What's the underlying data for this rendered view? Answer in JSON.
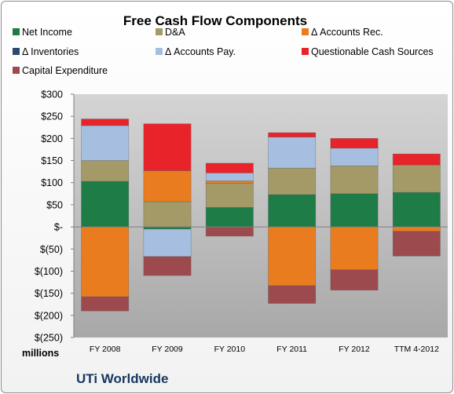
{
  "chart_data": {
    "type": "bar",
    "stacked": true,
    "title": "Free Cash Flow Components",
    "units_label": "millions",
    "company": "UTi Worldwide",
    "categories": [
      "FY 2008",
      "FY 2009",
      "FY 2010",
      "FY 2011",
      "FY 2012",
      "TTM 4-2012"
    ],
    "ylim": [
      -250,
      300
    ],
    "y_ticks": [
      300,
      250,
      200,
      150,
      100,
      50,
      0,
      -50,
      -100,
      -150,
      -200,
      -250
    ],
    "y_tick_labels": [
      "$300",
      "$250",
      "$200",
      "$150",
      "$100",
      "$50",
      "$-",
      "$(50)",
      "$(100)",
      "$(150)",
      "$(200)",
      "$(250)"
    ],
    "legend_position": "top",
    "grid": false,
    "series": [
      {
        "name": "Net Income",
        "color": "#1e7c46",
        "values": [
          103,
          -5,
          44,
          73,
          75,
          78
        ]
      },
      {
        "name": "D&A",
        "color": "#a39a67",
        "values": [
          47,
          57,
          55,
          60,
          63,
          62
        ]
      },
      {
        "name": "Δ Accounts Rec.",
        "color": "#e97c1f",
        "values": [
          -158,
          70,
          5,
          -133,
          -97,
          -10
        ]
      },
      {
        "name": "Δ Inventories",
        "color": "#2b4a6f",
        "values": [
          0,
          0,
          0,
          0,
          0,
          0
        ]
      },
      {
        "name": "Δ Accounts Pay.",
        "color": "#a6bfe0",
        "values": [
          79,
          -62,
          18,
          70,
          40,
          0
        ]
      },
      {
        "name": "Questionable Cash Sources",
        "color": "#e8232a",
        "values": [
          15,
          106,
          22,
          10,
          22,
          25
        ]
      },
      {
        "name": "Capital Expenditure",
        "color": "#9c4a4e",
        "values": [
          -32,
          -43,
          -21,
          -40,
          -46,
          -56
        ]
      }
    ]
  }
}
